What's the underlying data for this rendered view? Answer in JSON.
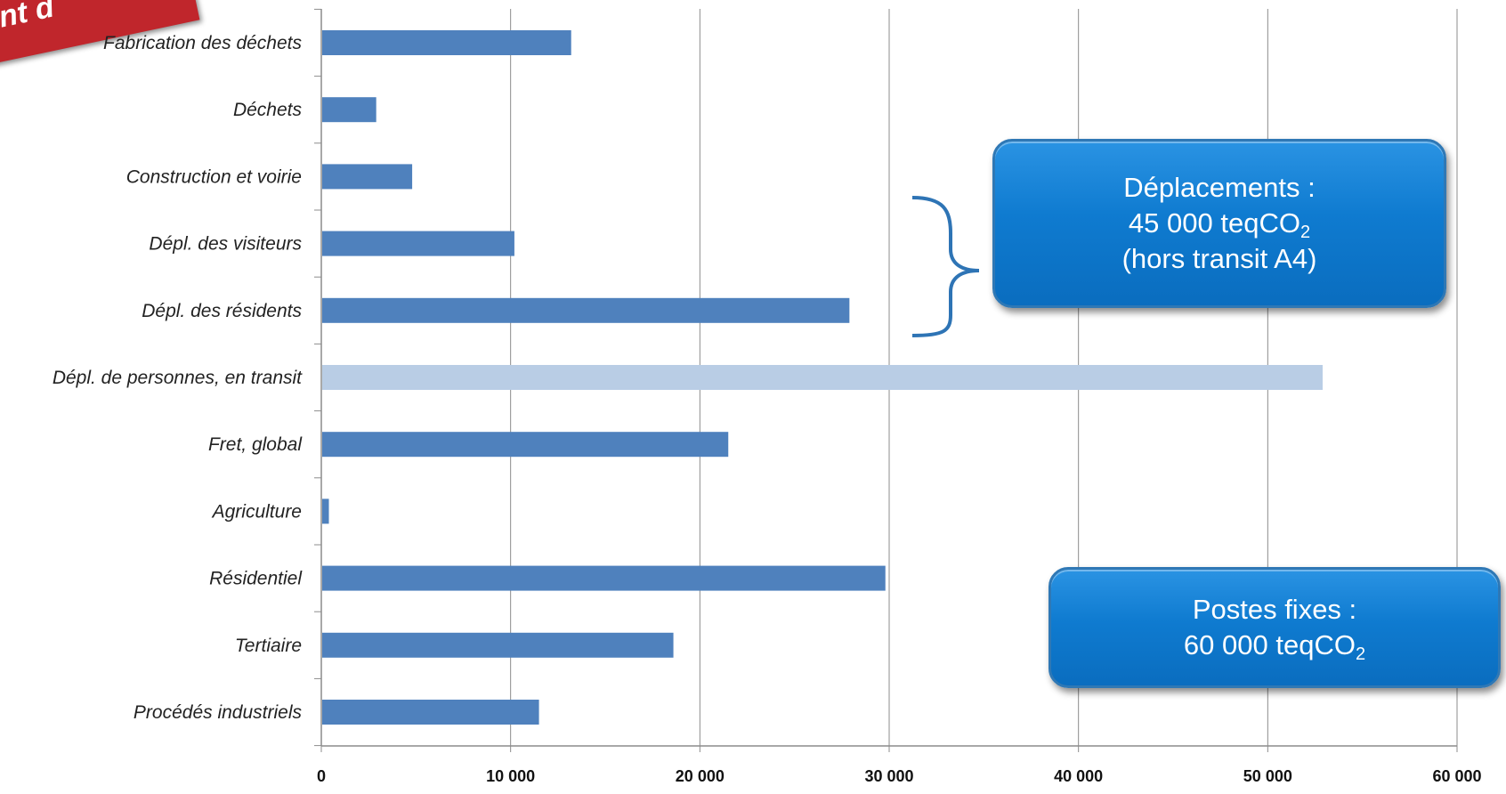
{
  "ribbon": {
    "text": "nt d"
  },
  "chart_data": {
    "type": "bar",
    "orientation": "horizontal",
    "categories": [
      "Fabrication des déchets",
      "Déchets",
      "Construction et voirie",
      "Dépl. des visiteurs",
      "Dépl. des résidents",
      "Dépl. de personnes, en transit",
      "Fret, global",
      "Agriculture",
      "Résidentiel",
      "Tertiaire",
      "Procédés industriels"
    ],
    "values": [
      13200,
      2900,
      4800,
      10200,
      27900,
      52900,
      21500,
      400,
      29800,
      18600,
      11500
    ],
    "highlight_index": 5,
    "xlim": [
      0,
      60000
    ],
    "ticks": [
      0,
      10000,
      20000,
      30000,
      40000,
      50000,
      60000
    ],
    "tick_labels": [
      "0",
      "10 000",
      "20 000",
      "30 000",
      "40 000",
      "50 000",
      "60 000"
    ],
    "grid": true,
    "colors": {
      "bar": "#4f81bd",
      "highlight": "#b9cde5",
      "grid": "#8c8c8c",
      "brace": "#2e74b5"
    }
  },
  "callouts": {
    "deplacements": {
      "line1": "Déplacements :",
      "line2_prefix": "45 000 teqCO",
      "line2_sub": "2",
      "line3": "(hors transit A4)"
    },
    "postes_fixes": {
      "line1": "Postes fixes :",
      "line2_prefix": "60 000 teqCO",
      "line2_sub": "2"
    }
  }
}
